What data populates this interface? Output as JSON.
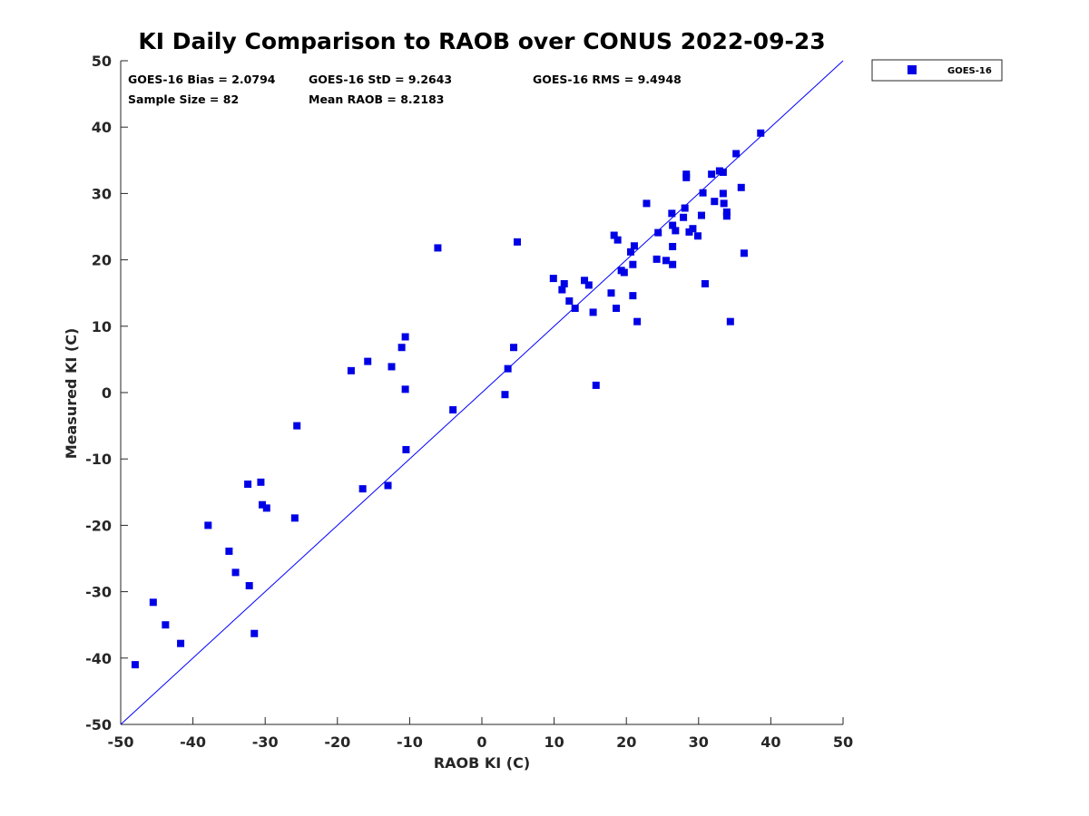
{
  "chart_data": {
    "type": "scatter",
    "title": "KI Daily Comparison to RAOB over CONUS 2022-09-23",
    "xlabel": "RAOB KI (C)",
    "ylabel": "Measured KI (C)",
    "xlim": [
      -50,
      50
    ],
    "ylim": [
      -50,
      50
    ],
    "xticks": [
      -50,
      -40,
      -30,
      -20,
      -10,
      0,
      10,
      20,
      30,
      40,
      50
    ],
    "yticks": [
      -50,
      -40,
      -30,
      -20,
      -10,
      0,
      10,
      20,
      30,
      40,
      50
    ],
    "xtick_labels": [
      "-50",
      "-40",
      "-30",
      "-20",
      "-10",
      "0",
      "10",
      "20",
      "30",
      "40",
      "50"
    ],
    "ytick_labels": [
      "-50",
      "-40",
      "-30",
      "-20",
      "-10",
      "0",
      "10",
      "20",
      "30",
      "40",
      "50"
    ],
    "grid": false,
    "reference_line": {
      "type": "1:1",
      "from": [
        -50,
        -50
      ],
      "to": [
        50,
        50
      ],
      "color": "#0000ff"
    },
    "stats": {
      "bias": "GOES-16 Bias = 2.0794",
      "std": "GOES-16 StD = 9.2643",
      "rms": "GOES-16 RMS = 9.4948",
      "sample": "Sample Size = 82",
      "mean": "Mean RAOB = 8.2183"
    },
    "legend": {
      "entries": [
        "GOES-16"
      ],
      "placement": "outside-top-right"
    },
    "series": [
      {
        "name": "GOES-16",
        "color": "#0000e6",
        "marker": "square",
        "points": [
          [
            -48,
            -41
          ],
          [
            -45.5,
            -31.6
          ],
          [
            -43.8,
            -35
          ],
          [
            -41.7,
            -37.8
          ],
          [
            -37.9,
            -20
          ],
          [
            -35,
            -23.9
          ],
          [
            -34.1,
            -27.1
          ],
          [
            -32.4,
            -13.8
          ],
          [
            -32.2,
            -29.1
          ],
          [
            -31.5,
            -36.3
          ],
          [
            -30.6,
            -13.5
          ],
          [
            -30.4,
            -16.9
          ],
          [
            -29.8,
            -17.4
          ],
          [
            -25.9,
            -18.9
          ],
          [
            -25.6,
            -5
          ],
          [
            -18.1,
            3.3
          ],
          [
            -16.5,
            -14.5
          ],
          [
            -15.8,
            4.7
          ],
          [
            -13,
            -14
          ],
          [
            -12.5,
            3.9
          ],
          [
            -11.1,
            6.8
          ],
          [
            -10.6,
            8.4
          ],
          [
            -10.6,
            0.5
          ],
          [
            -10.5,
            -8.6
          ],
          [
            -6.1,
            21.8
          ],
          [
            -4,
            -2.6
          ],
          [
            3.2,
            -0.3
          ],
          [
            3.6,
            3.6
          ],
          [
            4.4,
            6.8
          ],
          [
            4.9,
            22.7
          ],
          [
            9.9,
            17.2
          ],
          [
            11.1,
            15.5
          ],
          [
            11.4,
            16.4
          ],
          [
            12.1,
            13.8
          ],
          [
            12.9,
            12.7
          ],
          [
            14.2,
            16.9
          ],
          [
            14.8,
            16.2
          ],
          [
            15.4,
            12.1
          ],
          [
            15.8,
            1.1
          ],
          [
            17.9,
            15
          ],
          [
            18.3,
            23.7
          ],
          [
            18.6,
            12.7
          ],
          [
            18.8,
            23
          ],
          [
            19.3,
            18.4
          ],
          [
            19.7,
            18.1
          ],
          [
            20.6,
            21.2
          ],
          [
            20.9,
            19.3
          ],
          [
            20.9,
            14.6
          ],
          [
            21.1,
            22.1
          ],
          [
            21.5,
            10.7
          ],
          [
            22.8,
            28.5
          ],
          [
            24.2,
            20.1
          ],
          [
            24.4,
            24.1
          ],
          [
            25.5,
            19.9
          ],
          [
            26.3,
            27
          ],
          [
            26.4,
            25.2
          ],
          [
            26.4,
            22
          ],
          [
            26.4,
            19.3
          ],
          [
            26.8,
            24.4
          ],
          [
            27.9,
            26.4
          ],
          [
            28.1,
            27.8
          ],
          [
            28.3,
            32.9
          ],
          [
            28.3,
            32.4
          ],
          [
            28.7,
            24.2
          ],
          [
            29.2,
            24.7
          ],
          [
            29.9,
            23.6
          ],
          [
            30.4,
            26.7
          ],
          [
            30.6,
            30.1
          ],
          [
            30.9,
            16.4
          ],
          [
            31.8,
            32.9
          ],
          [
            32.2,
            28.8
          ],
          [
            32.9,
            33.4
          ],
          [
            33.4,
            33.2
          ],
          [
            33.4,
            30
          ],
          [
            33.5,
            28.5
          ],
          [
            33.9,
            27.2
          ],
          [
            33.9,
            26.6
          ],
          [
            34.4,
            10.7
          ],
          [
            35.2,
            36
          ],
          [
            35.9,
            30.9
          ],
          [
            36.3,
            21
          ],
          [
            38.6,
            39.1
          ]
        ]
      }
    ]
  }
}
